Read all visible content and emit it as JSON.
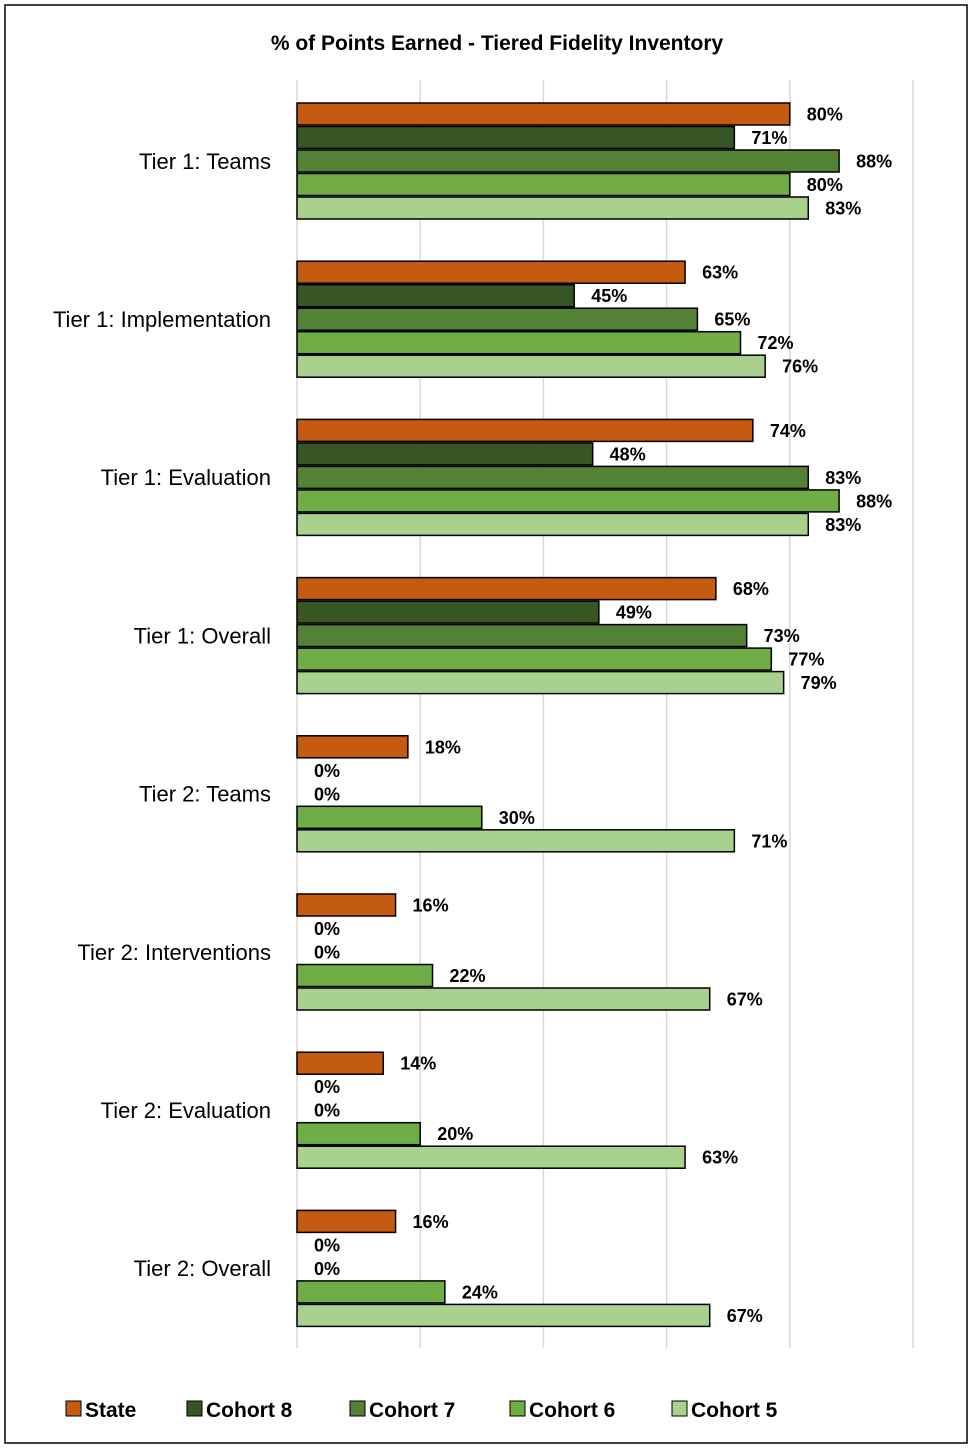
{
  "chart_data": {
    "type": "bar",
    "orientation": "horizontal",
    "title": "% of Points Earned - Tiered Fidelity Inventory",
    "categories": [
      "Tier 1: Teams",
      "Tier 1: Implementation",
      "Tier 1: Evaluation",
      "Tier 1: Overall",
      "Tier 2: Teams",
      "Tier 2: Interventions",
      "Tier 2: Evaluation",
      "Tier 2: Overall"
    ],
    "series": [
      {
        "name": "State",
        "color": "#c55a11",
        "values": [
          80,
          63,
          74,
          68,
          18,
          16,
          14,
          16
        ],
        "labels": [
          "80%",
          "63%",
          "74%",
          "68%",
          "18%",
          "16%",
          "14%",
          "16%"
        ]
      },
      {
        "name": "Cohort 8",
        "color": "#375623",
        "values": [
          71,
          45,
          48,
          49,
          0,
          0,
          0,
          0
        ],
        "labels": [
          "71%",
          "45%",
          "48%",
          "49%",
          "0%",
          "0%",
          "0%",
          "0%"
        ]
      },
      {
        "name": "Cohort 7",
        "color": "#538135",
        "values": [
          88,
          65,
          83,
          73,
          0,
          0,
          0,
          0
        ],
        "labels": [
          "88%",
          "65%",
          "83%",
          "73%",
          "0%",
          "0%",
          "0%",
          "0%"
        ]
      },
      {
        "name": "Cohort 6",
        "color": "#70ad47",
        "values": [
          80,
          72,
          88,
          77,
          30,
          22,
          20,
          24
        ],
        "labels": [
          "80%",
          "72%",
          "88%",
          "77%",
          "30%",
          "22%",
          "20%",
          "24%"
        ]
      },
      {
        "name": "Cohort 5",
        "color": "#a9d18e",
        "values": [
          83,
          76,
          83,
          79,
          71,
          67,
          63,
          67
        ],
        "labels": [
          "83%",
          "76%",
          "83%",
          "79%",
          "71%",
          "67%",
          "63%",
          "67%"
        ]
      }
    ],
    "xlim": [
      0,
      100
    ],
    "grid": true,
    "legend": "bottom"
  }
}
